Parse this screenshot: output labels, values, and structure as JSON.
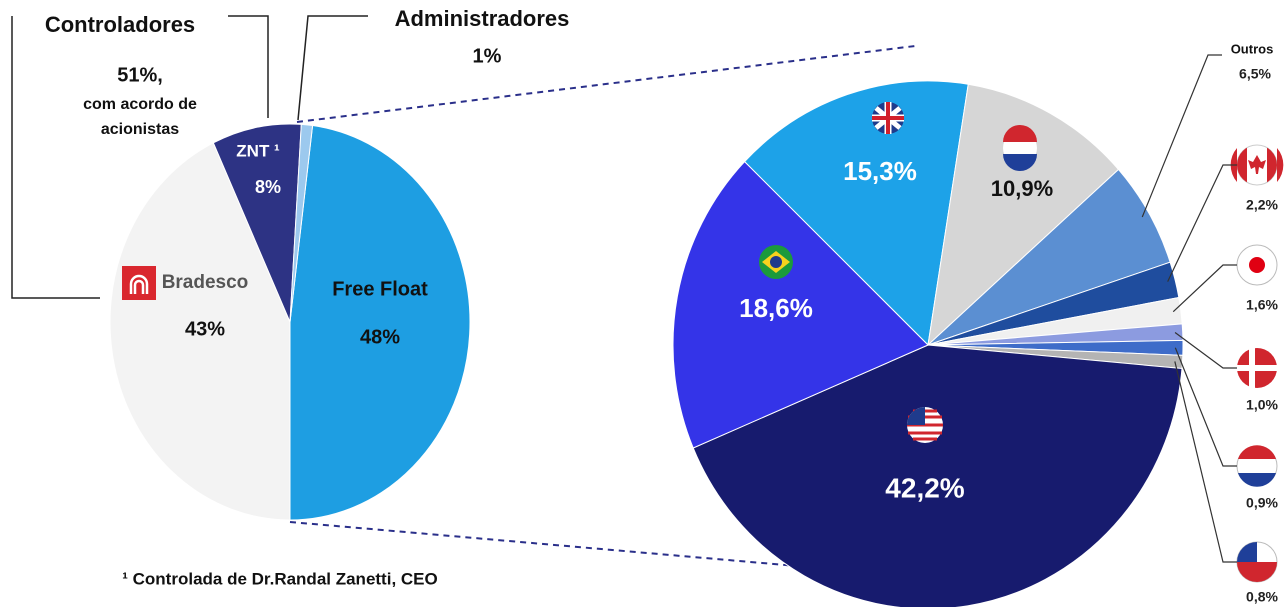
{
  "chart_data": [
    {
      "type": "pie",
      "categories": [
        "Free Float",
        "Bradesco",
        "ZNT ¹",
        "Administradores"
      ],
      "values": [
        48,
        43,
        8,
        1
      ],
      "value_labels": [
        "48%",
        "43%",
        "8%",
        "1%"
      ],
      "colors": [
        "#1e9ee2",
        "#f3f3f3",
        "#2d3384",
        "#9cc9ee"
      ],
      "annotations": [
        "Controladores",
        "51%,",
        "com acordo de",
        "acionistas",
        "¹ Controlada de Dr.Randal Zanetti, CEO"
      ]
    },
    {
      "type": "pie",
      "categories": [
        null,
        null,
        "Outros",
        null,
        null,
        null,
        null,
        null,
        null,
        null
      ],
      "values": [
        15.3,
        10.9,
        6.5,
        2.2,
        1.6,
        1.0,
        0.9,
        0.8,
        42.2,
        18.6
      ],
      "value_labels": [
        "15,3%",
        "10,9%",
        "6,5%",
        "2,2%",
        "1,6%",
        "1,0%",
        "0,9%",
        "0,8%",
        "42,2%",
        "18,6%"
      ],
      "colors": [
        "#1da2e8",
        "#d6d6d6",
        "#5b8fd2",
        "#1f4d9e",
        "#f0f0f0",
        "#8c9be0",
        "#3e6cc9",
        "#b4b4b4",
        "#171b6e",
        "#3434e8"
      ]
    }
  ]
}
